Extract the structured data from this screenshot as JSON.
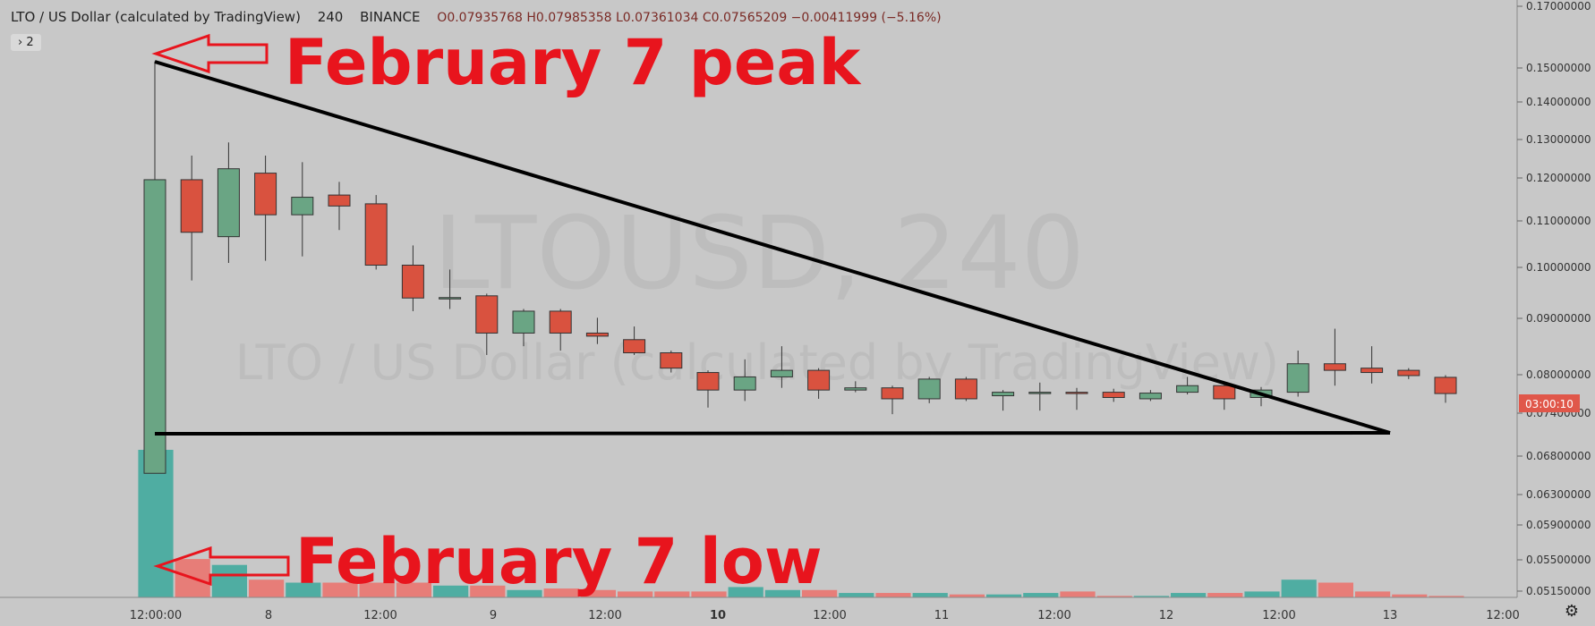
{
  "header": {
    "symbol": "LTO / US Dollar (calculated by TradingView)",
    "interval": "240",
    "exchange": "BINANCE",
    "ohlc": "O0.07935768  H0.07985358  L0.07361034  C0.07565209  −0.00411999 (−5.16%)"
  },
  "indicator_chip": "› 2",
  "watermark": {
    "main": "LTOUSD, 240",
    "sub": "LTO / US Dollar (calculated by TradingView)"
  },
  "annotations": {
    "peak": "February 7 peak",
    "low": "February 7 low"
  },
  "countdown": "03:00:10",
  "colors": {
    "up": "#6aa584",
    "down": "#d9523f",
    "vol_up": "#4fada2",
    "vol_down": "#e77d78",
    "annot": "#e8141d",
    "bg": "#c8c8c8"
  },
  "icons": {
    "settings": "gear-icon"
  },
  "chart_data": {
    "type": "candlestick",
    "price_axis_labels": [
      "0.17000000",
      "0.15000000",
      "0.14000000",
      "0.13000000",
      "0.12000000",
      "0.11000000",
      "0.10000000",
      "0.09000000",
      "0.08000000",
      "0.07400000",
      "0.06800000",
      "0.06300000",
      "0.05900000",
      "0.05500000",
      "0.05150000"
    ],
    "time_axis_labels": [
      "12:00:00",
      "8",
      "12:00",
      "9",
      "12:00",
      "10",
      "12:00",
      "11",
      "12:00",
      "12",
      "12:00",
      "13",
      "12:00"
    ],
    "candles": [
      {
        "o": 0.0575,
        "h": 0.1515,
        "l": 0.0575,
        "c": 0.1245
      },
      {
        "o": 0.1245,
        "h": 0.13,
        "l": 0.1015,
        "c": 0.1125
      },
      {
        "o": 0.1115,
        "h": 0.133,
        "l": 0.1055,
        "c": 0.127
      },
      {
        "o": 0.126,
        "h": 0.13,
        "l": 0.106,
        "c": 0.1165
      },
      {
        "o": 0.1165,
        "h": 0.1285,
        "l": 0.107,
        "c": 0.1205
      },
      {
        "o": 0.121,
        "h": 0.124,
        "l": 0.113,
        "c": 0.1185
      },
      {
        "o": 0.119,
        "h": 0.121,
        "l": 0.104,
        "c": 0.105
      },
      {
        "o": 0.105,
        "h": 0.1095,
        "l": 0.0945,
        "c": 0.0975
      },
      {
        "o": 0.0975,
        "h": 0.104,
        "l": 0.095,
        "c": 0.0976
      },
      {
        "o": 0.098,
        "h": 0.0985,
        "l": 0.0845,
        "c": 0.0895
      },
      {
        "o": 0.0895,
        "h": 0.095,
        "l": 0.0865,
        "c": 0.0945
      },
      {
        "o": 0.0945,
        "h": 0.095,
        "l": 0.0855,
        "c": 0.0895
      },
      {
        "o": 0.0895,
        "h": 0.093,
        "l": 0.087,
        "c": 0.0888
      },
      {
        "o": 0.088,
        "h": 0.091,
        "l": 0.0845,
        "c": 0.085
      },
      {
        "o": 0.085,
        "h": 0.0855,
        "l": 0.0805,
        "c": 0.0815
      },
      {
        "o": 0.0805,
        "h": 0.081,
        "l": 0.0725,
        "c": 0.0765
      },
      {
        "o": 0.0765,
        "h": 0.0835,
        "l": 0.074,
        "c": 0.0795
      },
      {
        "o": 0.0795,
        "h": 0.0865,
        "l": 0.077,
        "c": 0.081
      },
      {
        "o": 0.081,
        "h": 0.0815,
        "l": 0.0745,
        "c": 0.0765
      },
      {
        "o": 0.0765,
        "h": 0.0785,
        "l": 0.076,
        "c": 0.077
      },
      {
        "o": 0.077,
        "h": 0.0775,
        "l": 0.071,
        "c": 0.0745
      },
      {
        "o": 0.0745,
        "h": 0.0795,
        "l": 0.0735,
        "c": 0.079
      },
      {
        "o": 0.079,
        "h": 0.0795,
        "l": 0.074,
        "c": 0.0745
      },
      {
        "o": 0.0752,
        "h": 0.0765,
        "l": 0.0718,
        "c": 0.076
      },
      {
        "o": 0.0758,
        "h": 0.0782,
        "l": 0.0718,
        "c": 0.076
      },
      {
        "o": 0.076,
        "h": 0.077,
        "l": 0.072,
        "c": 0.0758
      },
      {
        "o": 0.076,
        "h": 0.0768,
        "l": 0.0738,
        "c": 0.0748
      },
      {
        "o": 0.0745,
        "h": 0.0765,
        "l": 0.074,
        "c": 0.0758
      },
      {
        "o": 0.076,
        "h": 0.0795,
        "l": 0.0755,
        "c": 0.0775
      },
      {
        "o": 0.0775,
        "h": 0.078,
        "l": 0.072,
        "c": 0.0745
      },
      {
        "o": 0.0748,
        "h": 0.0772,
        "l": 0.0728,
        "c": 0.0765
      },
      {
        "o": 0.076,
        "h": 0.0855,
        "l": 0.075,
        "c": 0.0825
      },
      {
        "o": 0.0825,
        "h": 0.0905,
        "l": 0.0775,
        "c": 0.081
      },
      {
        "o": 0.0815,
        "h": 0.0865,
        "l": 0.078,
        "c": 0.0805
      },
      {
        "o": 0.081,
        "h": 0.0815,
        "l": 0.079,
        "c": 0.0798
      },
      {
        "o": 0.0794,
        "h": 0.0799,
        "l": 0.0736,
        "c": 0.0757
      }
    ],
    "volume_relative": [
      100,
      26,
      22,
      12,
      10,
      10,
      10,
      10,
      8,
      8,
      5,
      6,
      5,
      4,
      4,
      4,
      7,
      5,
      5,
      3,
      3,
      3,
      2,
      2,
      3,
      4,
      1,
      1,
      3,
      3,
      4,
      12,
      10,
      4,
      2,
      1
    ]
  }
}
